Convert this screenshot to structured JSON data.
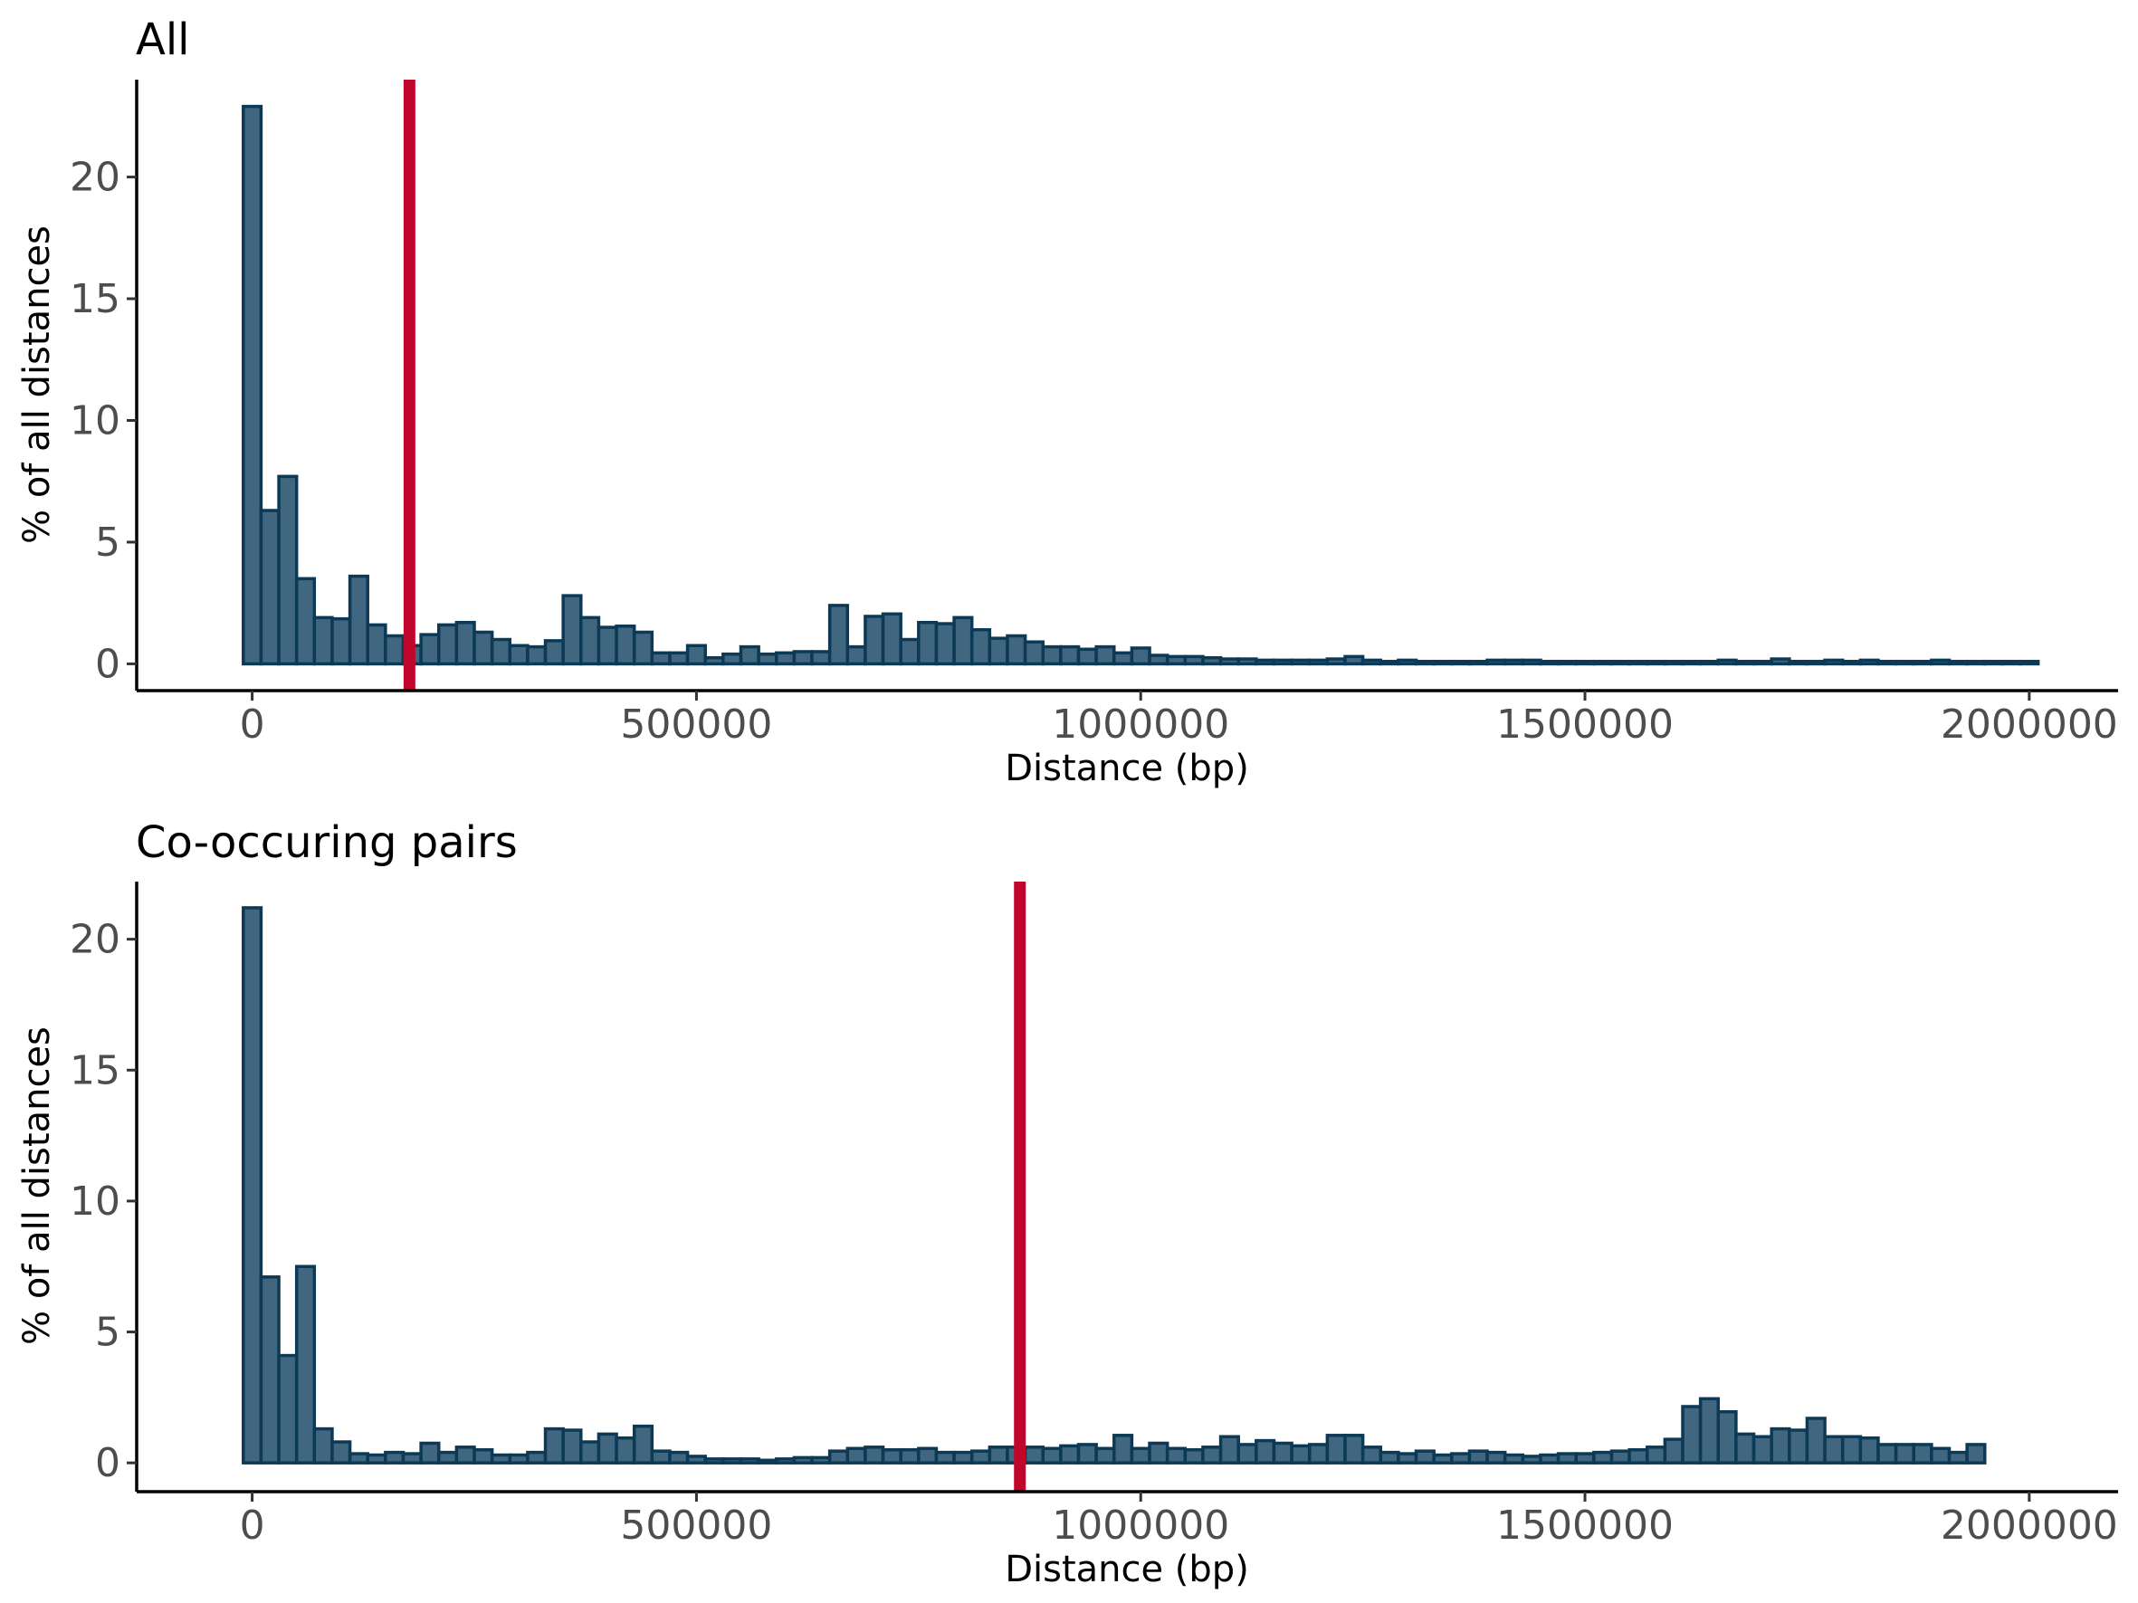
{
  "chart_data": [
    {
      "type": "bar",
      "title": "All",
      "xlabel": "Distance (bp)",
      "ylabel": "% of all distances",
      "xlim": [
        -130000,
        2100000
      ],
      "ylim": [
        -1.1,
        24
      ],
      "xticks": [
        0,
        500000,
        1000000,
        1500000,
        2000000
      ],
      "xtick_labels": [
        "0",
        "500000",
        "1000000",
        "1500000",
        "2000000"
      ],
      "yticks": [
        0,
        5,
        10,
        15,
        20
      ],
      "ytick_labels": [
        "0",
        "5",
        "10",
        "15",
        "20"
      ],
      "binwidth": 20000,
      "bin_start": -10000,
      "values": [
        22.9,
        6.3,
        7.7,
        3.5,
        1.9,
        1.85,
        3.6,
        1.6,
        1.15,
        0.75,
        1.2,
        1.6,
        1.7,
        1.3,
        1.0,
        0.75,
        0.7,
        0.95,
        2.8,
        1.9,
        1.5,
        1.55,
        1.3,
        0.45,
        0.45,
        0.75,
        0.25,
        0.4,
        0.7,
        0.4,
        0.45,
        0.5,
        0.5,
        2.4,
        0.7,
        1.95,
        2.05,
        1.0,
        1.7,
        1.65,
        1.9,
        1.4,
        1.05,
        1.15,
        0.9,
        0.7,
        0.7,
        0.6,
        0.7,
        0.45,
        0.65,
        0.35,
        0.3,
        0.3,
        0.25,
        0.2,
        0.2,
        0.15,
        0.15,
        0.15,
        0.15,
        0.2,
        0.3,
        0.15,
        0.1,
        0.15,
        0.1,
        0.1,
        0.1,
        0.1,
        0.15,
        0.15,
        0.15,
        0.1,
        0.1,
        0.1,
        0.1,
        0.1,
        0.1,
        0.1,
        0.1,
        0.1,
        0.1,
        0.15,
        0.1,
        0.1,
        0.2,
        0.1,
        0.1,
        0.15,
        0.1,
        0.15,
        0.1,
        0.1,
        0.1,
        0.15,
        0.1,
        0.1,
        0.1,
        0.1,
        0.1
      ],
      "vline": {
        "x": 177000,
        "color": "#c0062b"
      },
      "colors": {
        "fill": "#41667f",
        "stroke": "#0c3a56"
      },
      "grid": false,
      "legend": "none"
    },
    {
      "type": "bar",
      "title": "Co-occuring pairs",
      "xlabel": "Distance (bp)",
      "ylabel": "% of all distances",
      "xlim": [
        -130000,
        2100000
      ],
      "ylim": [
        -1.1,
        22.2
      ],
      "xticks": [
        0,
        500000,
        1000000,
        1500000,
        2000000
      ],
      "xtick_labels": [
        "0",
        "500000",
        "1000000",
        "1500000",
        "2000000"
      ],
      "yticks": [
        0,
        5,
        10,
        15,
        20
      ],
      "ytick_labels": [
        "0",
        "5",
        "10",
        "15",
        "20"
      ],
      "binwidth": 20000,
      "bin_start": -10000,
      "values": [
        21.2,
        7.1,
        4.1,
        7.5,
        1.3,
        0.8,
        0.35,
        0.3,
        0.4,
        0.35,
        0.75,
        0.4,
        0.6,
        0.5,
        0.3,
        0.3,
        0.4,
        1.3,
        1.25,
        0.8,
        1.1,
        0.95,
        1.4,
        0.45,
        0.4,
        0.25,
        0.15,
        0.15,
        0.15,
        0.1,
        0.15,
        0.2,
        0.2,
        0.45,
        0.55,
        0.6,
        0.5,
        0.5,
        0.55,
        0.4,
        0.4,
        0.45,
        0.6,
        0.6,
        0.6,
        0.55,
        0.65,
        0.7,
        0.55,
        1.05,
        0.55,
        0.75,
        0.55,
        0.5,
        0.6,
        1.0,
        0.7,
        0.85,
        0.75,
        0.65,
        0.7,
        1.05,
        1.05,
        0.6,
        0.4,
        0.35,
        0.45,
        0.3,
        0.35,
        0.45,
        0.4,
        0.3,
        0.25,
        0.3,
        0.35,
        0.35,
        0.4,
        0.45,
        0.5,
        0.6,
        0.9,
        2.15,
        2.45,
        1.95,
        1.1,
        1.0,
        1.3,
        1.25,
        1.7,
        1.0,
        1.0,
        0.95,
        0.7,
        0.7,
        0.7,
        0.55,
        0.4,
        0.7
      ],
      "vline": {
        "x": 864000,
        "color": "#c0062b"
      },
      "colors": {
        "fill": "#41667f",
        "stroke": "#0c3a56"
      },
      "grid": false,
      "legend": "none"
    }
  ]
}
